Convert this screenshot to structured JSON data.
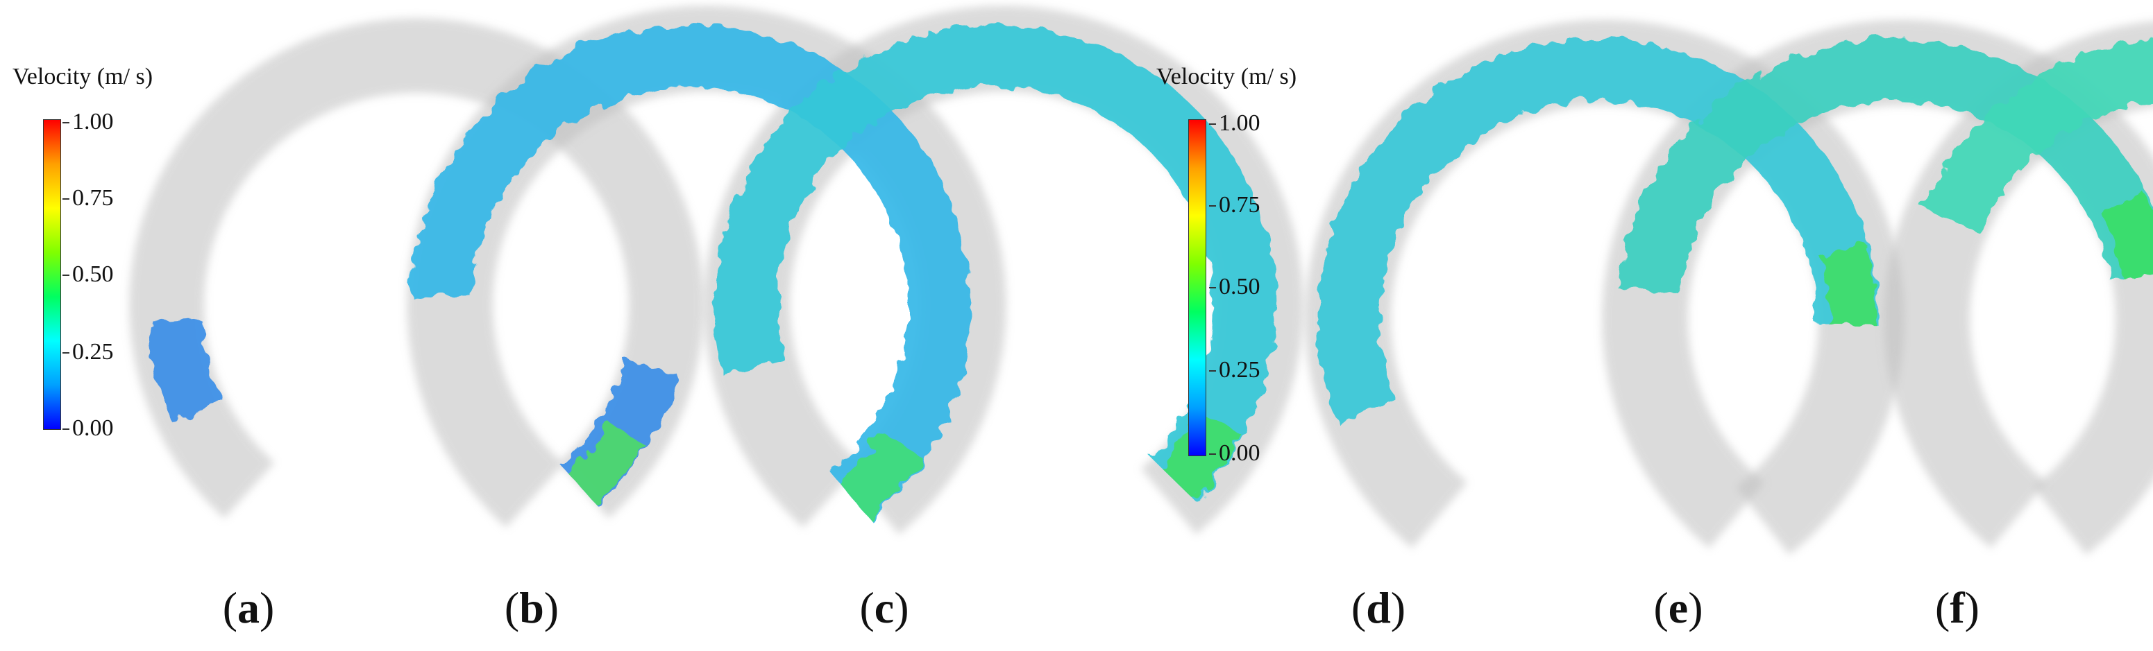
{
  "colorbars": [
    {
      "title": "Velocity (m/ s)",
      "ticks": [
        "1.00",
        "0.75",
        "0.50",
        "0.25",
        "0.00"
      ]
    },
    {
      "title": "Velocity (m/ s)",
      "ticks": [
        "1.00",
        "0.75",
        "0.50",
        "0.25",
        "0.00"
      ]
    }
  ],
  "colormap": [
    "#0000ff",
    "#00a0ff",
    "#00ffff",
    "#00ff60",
    "#80ff00",
    "#ffff00",
    "#ffa000",
    "#ff0000"
  ],
  "panels": [
    {
      "letter": "a",
      "fill_start": 0.0,
      "fill_end": 0.12,
      "extra_start": 0.84,
      "extra_end": 0.92,
      "offset": 0,
      "color": "#3a8fe8",
      "tip_color": "#50e060"
    },
    {
      "letter": "b",
      "fill_start": 0.0,
      "fill_end": 0.82,
      "extra_start": null,
      "extra_end": null,
      "offset": 24,
      "color": "#34b8e8",
      "tip_color": "#40e070"
    },
    {
      "letter": "c",
      "fill_start": 0.02,
      "fill_end": 0.88,
      "extra_start": null,
      "extra_end": null,
      "offset": 12,
      "color": "#34c8d8",
      "tip_color": "#40e060"
    },
    {
      "letter": "d",
      "fill_start": 0.18,
      "fill_end": 0.9,
      "extra_start": null,
      "extra_end": null,
      "offset": 10,
      "color": "#38c8d8",
      "tip_color": "#40e060"
    },
    {
      "letter": "e",
      "fill_start": 0.22,
      "fill_end": 0.8,
      "extra_start": null,
      "extra_end": null,
      "offset": 8,
      "color": "#3ad0c0",
      "tip_color": "#38e060"
    },
    {
      "letter": "f",
      "fill_start": 0.28,
      "fill_end": 0.74,
      "extra_start": null,
      "extra_end": null,
      "offset": 6,
      "color": "#40d8b8",
      "tip_color": "#30e050"
    }
  ]
}
